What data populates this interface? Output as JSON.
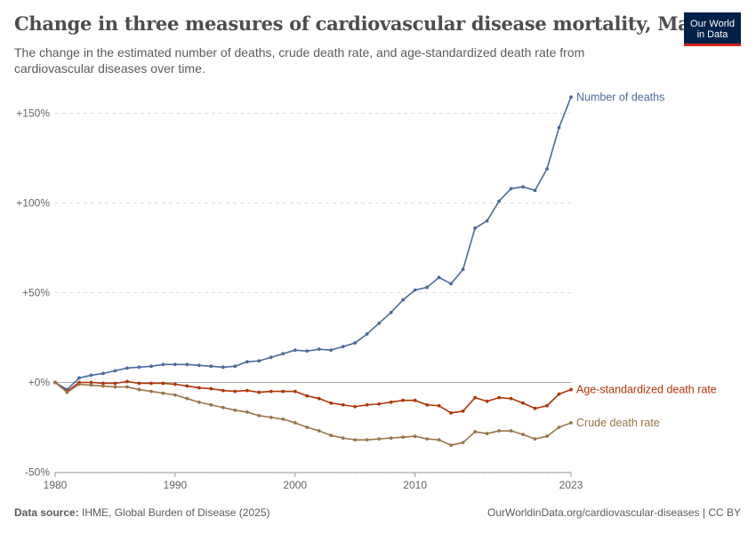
{
  "header": {
    "title": "Change in three measures of cardiovascular disease mortality, Mali",
    "subtitle": "The change in the estimated number of deaths, crude death rate, and age-standardized death rate from cardiovascular diseases over time."
  },
  "logo": {
    "line1": "Our World",
    "line2": "in Data",
    "bg_color": "#002147",
    "accent_color": "#ce261e"
  },
  "footer": {
    "source_label": "Data source:",
    "source_text": "IHME, Global Burden of Disease (2025)",
    "url_text": "OurWorldinData.org/cardiovascular-diseases",
    "license_text": "| CC BY"
  },
  "chart_data": {
    "type": "line",
    "title": "Change in three measures of cardiovascular disease mortality, Mali",
    "xlabel": "",
    "ylabel": "",
    "xlim": [
      1980,
      2023
    ],
    "ylim": [
      -50,
      160
    ],
    "x_ticks": [
      1980,
      1990,
      2000,
      2010,
      2023
    ],
    "y_ticks": [
      {
        "value": -50,
        "label": "-50%"
      },
      {
        "value": 0,
        "label": "+0%"
      },
      {
        "value": 50,
        "label": "+50%"
      },
      {
        "value": 100,
        "label": "+100%"
      },
      {
        "value": 150,
        "label": "+150%"
      }
    ],
    "grid": "horizontal dashed",
    "x": [
      1980,
      1981,
      1982,
      1983,
      1984,
      1985,
      1986,
      1987,
      1988,
      1989,
      1990,
      1991,
      1992,
      1993,
      1994,
      1995,
      1996,
      1997,
      1998,
      1999,
      2000,
      2001,
      2002,
      2003,
      2004,
      2005,
      2006,
      2007,
      2008,
      2009,
      2010,
      2011,
      2012,
      2013,
      2014,
      2015,
      2016,
      2017,
      2018,
      2019,
      2020,
      2021,
      2022,
      2023
    ],
    "series": [
      {
        "name": "Number of deaths",
        "color": "#4c6a9c",
        "values": [
          0,
          -4,
          2.5,
          4,
          5,
          6.5,
          8,
          8.5,
          9,
          10,
          10,
          10,
          9.5,
          9,
          8.5,
          9,
          11.5,
          12,
          14,
          16,
          18,
          17.5,
          18.5,
          18,
          20,
          22,
          27,
          33,
          39,
          46,
          51.5,
          53,
          58.5,
          55,
          63,
          86,
          90,
          101,
          108,
          109,
          107,
          119,
          142,
          159
        ]
      },
      {
        "name": "Age-standardized death rate",
        "color": "#b13507",
        "values": [
          0,
          -5,
          0,
          0,
          -0.5,
          -0.5,
          0.5,
          -0.5,
          -0.5,
          -0.5,
          -1,
          -2,
          -3,
          -3.5,
          -4.5,
          -5,
          -4.5,
          -5.5,
          -5,
          -5,
          -5,
          -7.5,
          -9,
          -11.5,
          -12.5,
          -13.5,
          -12.5,
          -12,
          -11,
          -10,
          -10,
          -12.5,
          -13,
          -17,
          -16,
          -8.5,
          -10.5,
          -8.5,
          -9,
          -11.5,
          -14.5,
          -13,
          -6.5,
          -4
        ]
      },
      {
        "name": "Crude death rate",
        "color": "#9a7448",
        "values": [
          0,
          -5.5,
          -1,
          -1.5,
          -2,
          -2.5,
          -2.5,
          -4,
          -5,
          -6,
          -7,
          -9,
          -11,
          -12.5,
          -14,
          -15.5,
          -16.5,
          -18.5,
          -19.5,
          -20.5,
          -22.5,
          -25,
          -27,
          -29.5,
          -31,
          -32,
          -32,
          -31.5,
          -31,
          -30.5,
          -30,
          -31.5,
          -32,
          -35,
          -33.5,
          -27.5,
          -28.5,
          -27,
          -27,
          -29,
          -31.5,
          -30,
          -25,
          -22.5
        ]
      }
    ]
  }
}
